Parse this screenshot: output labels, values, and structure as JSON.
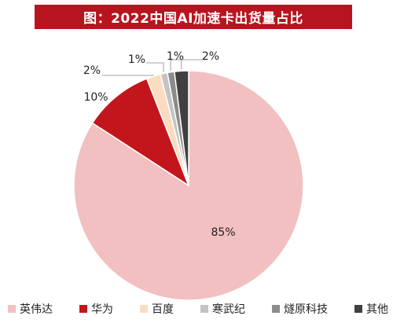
{
  "chart_data": {
    "type": "pie",
    "title": "图：2022中国AI加速卡出货量占比",
    "categories": [
      "英伟达",
      "华为",
      "百度",
      "寒武纪",
      "燧原科技",
      "其他"
    ],
    "values": [
      85,
      10,
      2,
      1,
      1,
      2
    ],
    "labels": [
      "85%",
      "10%",
      "2%",
      "1%",
      "1%",
      "2%"
    ],
    "colors": [
      "#f2c0c0",
      "#c3161c",
      "#fcdcc0",
      "#c4c4c4",
      "#8c8c8c",
      "#404040"
    ],
    "legend_position": "bottom"
  }
}
